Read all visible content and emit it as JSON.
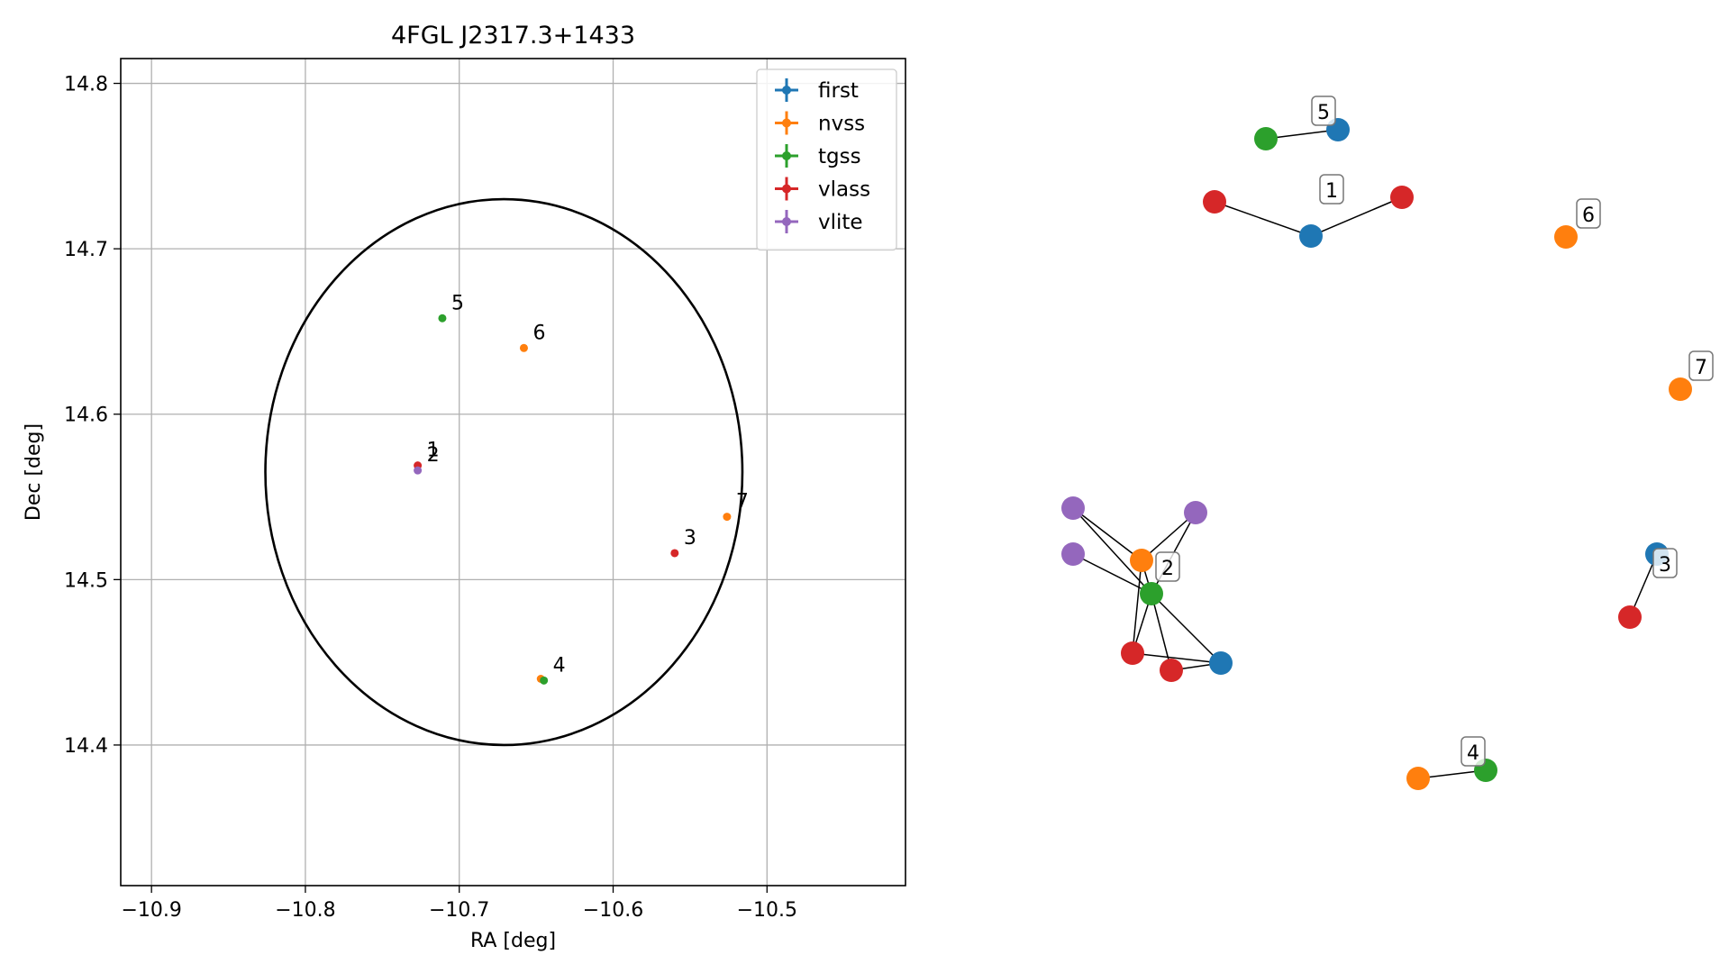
{
  "chart_data": [
    {
      "type": "scatter",
      "title": "4FGL J2317.3+1433",
      "xlabel": "RA [deg]",
      "ylabel": "Dec [deg]",
      "xlim": [
        -10.92,
        -10.41
      ],
      "ylim": [
        14.315,
        14.815
      ],
      "xticks": [
        -10.9,
        -10.8,
        -10.7,
        -10.6,
        -10.5
      ],
      "xtick_labels": [
        "−10.9",
        "−10.8",
        "−10.7",
        "−10.6",
        "−10.5"
      ],
      "yticks": [
        14.4,
        14.5,
        14.6,
        14.7,
        14.8
      ],
      "ytick_labels": [
        "14.4",
        "14.5",
        "14.6",
        "14.7",
        "14.8"
      ],
      "grid": true,
      "legend_position": "top-right",
      "ellipse": {
        "center": [
          -10.671,
          14.565
        ],
        "ra_radius": 0.155,
        "dec_radius": 0.165,
        "color": "#000000"
      },
      "series": [
        {
          "name": "first",
          "color": "#1f77b4",
          "points": []
        },
        {
          "name": "nvss",
          "color": "#ff7f0e",
          "points": [
            [
              -10.658,
              14.64
            ],
            [
              -10.526,
              14.538
            ],
            [
              -10.647,
              14.44
            ]
          ]
        },
        {
          "name": "tgss",
          "color": "#2ca02c",
          "points": [
            [
              -10.711,
              14.658
            ],
            [
              -10.645,
              14.439
            ]
          ]
        },
        {
          "name": "vlass",
          "color": "#d62728",
          "points": [
            [
              -10.727,
              14.569
            ],
            [
              -10.56,
              14.516
            ]
          ]
        },
        {
          "name": "vlite",
          "color": "#9467bd",
          "points": [
            [
              -10.727,
              14.566
            ]
          ]
        }
      ],
      "annotations": [
        {
          "text": "1",
          "x": -10.727,
          "y": 14.569
        },
        {
          "text": "2",
          "x": -10.727,
          "y": 14.566
        },
        {
          "text": "3",
          "x": -10.56,
          "y": 14.516
        },
        {
          "text": "4",
          "x": -10.645,
          "y": 14.439
        },
        {
          "text": "5",
          "x": -10.711,
          "y": 14.658
        },
        {
          "text": "6",
          "x": -10.658,
          "y": 14.64
        },
        {
          "text": "7",
          "x": -10.526,
          "y": 14.538
        }
      ]
    },
    {
      "type": "network",
      "colors": {
        "first": "#1f77b4",
        "nvss": "#ff7f0e",
        "tgss": "#2ca02c",
        "vlass": "#d62728",
        "vlite": "#9467bd"
      },
      "nodes": [
        {
          "id": "c5_first",
          "cls": "first"
        },
        {
          "id": "c5_tgss",
          "cls": "tgss"
        },
        {
          "id": "c1_first",
          "cls": "first"
        },
        {
          "id": "c1_vlass_a",
          "cls": "vlass"
        },
        {
          "id": "c1_vlass_b",
          "cls": "vlass"
        },
        {
          "id": "c6_nvss",
          "cls": "nvss"
        },
        {
          "id": "c7_nvss",
          "cls": "nvss"
        },
        {
          "id": "c2_vlite_a",
          "cls": "vlite"
        },
        {
          "id": "c2_vlite_b",
          "cls": "vlite"
        },
        {
          "id": "c2_vlite_c",
          "cls": "vlite"
        },
        {
          "id": "c2_nvss",
          "cls": "nvss"
        },
        {
          "id": "c2_tgss",
          "cls": "tgss"
        },
        {
          "id": "c2_vlass_a",
          "cls": "vlass"
        },
        {
          "id": "c2_vlass_b",
          "cls": "vlass"
        },
        {
          "id": "c2_first",
          "cls": "first"
        },
        {
          "id": "c3_first",
          "cls": "first"
        },
        {
          "id": "c3_vlass",
          "cls": "vlass"
        },
        {
          "id": "c4_nvss",
          "cls": "nvss"
        },
        {
          "id": "c4_tgss",
          "cls": "tgss"
        }
      ],
      "edges": [
        [
          "c5_first",
          "c5_tgss"
        ],
        [
          "c1_first",
          "c1_vlass_a"
        ],
        [
          "c1_first",
          "c1_vlass_b"
        ],
        [
          "c2_vlite_a",
          "c2_nvss"
        ],
        [
          "c2_vlite_a",
          "c2_tgss"
        ],
        [
          "c2_vlite_b",
          "c2_nvss"
        ],
        [
          "c2_vlite_b",
          "c2_tgss"
        ],
        [
          "c2_vlite_c",
          "c2_tgss"
        ],
        [
          "c2_nvss",
          "c2_tgss"
        ],
        [
          "c2_nvss",
          "c2_vlass_a"
        ],
        [
          "c2_tgss",
          "c2_vlass_a"
        ],
        [
          "c2_tgss",
          "c2_vlass_b"
        ],
        [
          "c2_tgss",
          "c2_first"
        ],
        [
          "c2_vlass_a",
          "c2_first"
        ],
        [
          "c2_vlass_b",
          "c2_first"
        ],
        [
          "c3_first",
          "c3_vlass"
        ],
        [
          "c4_nvss",
          "c4_tgss"
        ]
      ],
      "cluster_labels": [
        {
          "text": "1"
        },
        {
          "text": "2"
        },
        {
          "text": "3"
        },
        {
          "text": "4"
        },
        {
          "text": "5"
        },
        {
          "text": "6"
        },
        {
          "text": "7"
        }
      ]
    }
  ]
}
